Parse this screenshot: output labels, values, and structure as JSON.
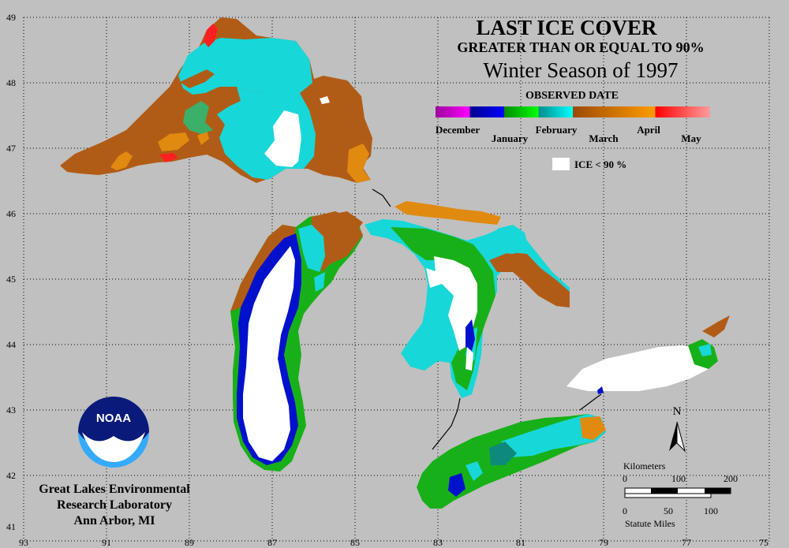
{
  "title": {
    "line1": "LAST ICE COVER",
    "line2": "GREATER THAN OR EQUAL TO 90%",
    "line3": "Winter Season of 1997"
  },
  "legend": {
    "header": "OBSERVED DATE",
    "labels": [
      "December",
      "January",
      "February",
      "March",
      "April",
      "May"
    ],
    "gradient_colors": [
      "#9c009c",
      "#ff00ff",
      "#00008c",
      "#0000ff",
      "#008c00",
      "#00ff00",
      "#008c8c",
      "#00ffff",
      "#9c4a00",
      "#ff9c00",
      "#ff0000",
      "#ff9c9c"
    ],
    "ice_label": "ICE < 90 %"
  },
  "axes": {
    "latitudes": [
      "49",
      "48",
      "47",
      "46",
      "45",
      "44",
      "43",
      "42",
      "41"
    ],
    "longitudes": [
      "93",
      "91",
      "89",
      "87",
      "85",
      "83",
      "81",
      "79",
      "77",
      "75"
    ]
  },
  "agency": {
    "logo_text": "NOAA",
    "lines": [
      "Great Lakes Environmental",
      "Research Laboratory",
      "Ann Arbor, MI"
    ]
  },
  "north_arrow": "N",
  "scale_bar": {
    "km_label": "Kilometers",
    "km_ticks": [
      "0",
      "100",
      "200"
    ],
    "mi_ticks": [
      "0",
      "50",
      "100"
    ],
    "mi_label": "Statute Miles"
  },
  "colors": {
    "background": "#c0c0c0",
    "april": "#b15c16",
    "march": "#18d7d8",
    "february": "#18b018",
    "january": "#0011cc",
    "ice_lt_90": "#ffffff"
  }
}
